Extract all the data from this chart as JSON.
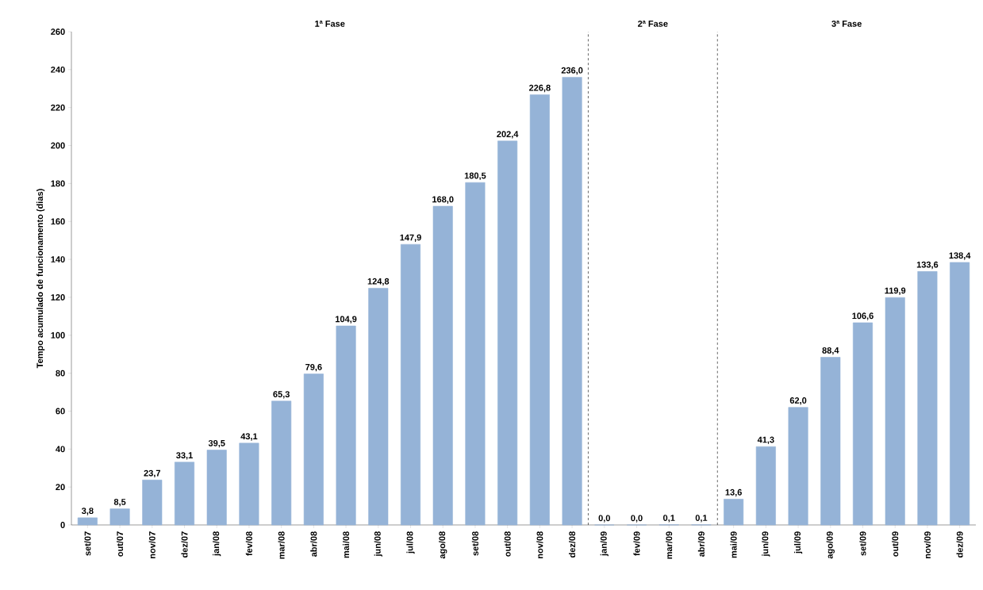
{
  "chart_data": {
    "type": "bar",
    "categories": [
      "set/07",
      "out/07",
      "nov/07",
      "dez/07",
      "jan/08",
      "fev/08",
      "mar/08",
      "abr/08",
      "mai/08",
      "jun/08",
      "jul/08",
      "ago/08",
      "set/08",
      "out/08",
      "nov/08",
      "dez/08",
      "jan/09",
      "fev/09",
      "mar/09",
      "abr/09",
      "mai/09",
      "jun/09",
      "jul/09",
      "ago/09",
      "set/09",
      "out/09",
      "nov/09",
      "dez/09"
    ],
    "values": [
      3.8,
      8.5,
      23.7,
      33.1,
      39.5,
      43.1,
      65.3,
      79.6,
      104.9,
      124.8,
      147.9,
      168.0,
      180.5,
      202.4,
      226.8,
      236.0,
      0.0,
      0.0,
      0.1,
      0.1,
      13.6,
      41.3,
      62.0,
      88.4,
      106.6,
      119.9,
      133.6,
      138.4
    ],
    "value_labels": [
      "3,8",
      "8,5",
      "23,7",
      "33,1",
      "39,5",
      "43,1",
      "65,3",
      "79,6",
      "104,9",
      "124,8",
      "147,9",
      "168,0",
      "180,5",
      "202,4",
      "226,8",
      "236,0",
      "0,0",
      "0,0",
      "0,1",
      "0,1",
      "13,6",
      "41,3",
      "62,0",
      "88,4",
      "106,6",
      "119,9",
      "133,6",
      "138,4"
    ],
    "color": "#95b3d7",
    "ylabel": "Tempo acumulado de funcionamento (dias)",
    "ylim": [
      0,
      260
    ],
    "yticks": [
      0,
      20,
      40,
      60,
      80,
      100,
      120,
      140,
      160,
      180,
      200,
      220,
      240,
      260
    ],
    "grid": false,
    "annotations": [
      "1ª Fase",
      "2ª Fase",
      "3ª Fase"
    ]
  }
}
